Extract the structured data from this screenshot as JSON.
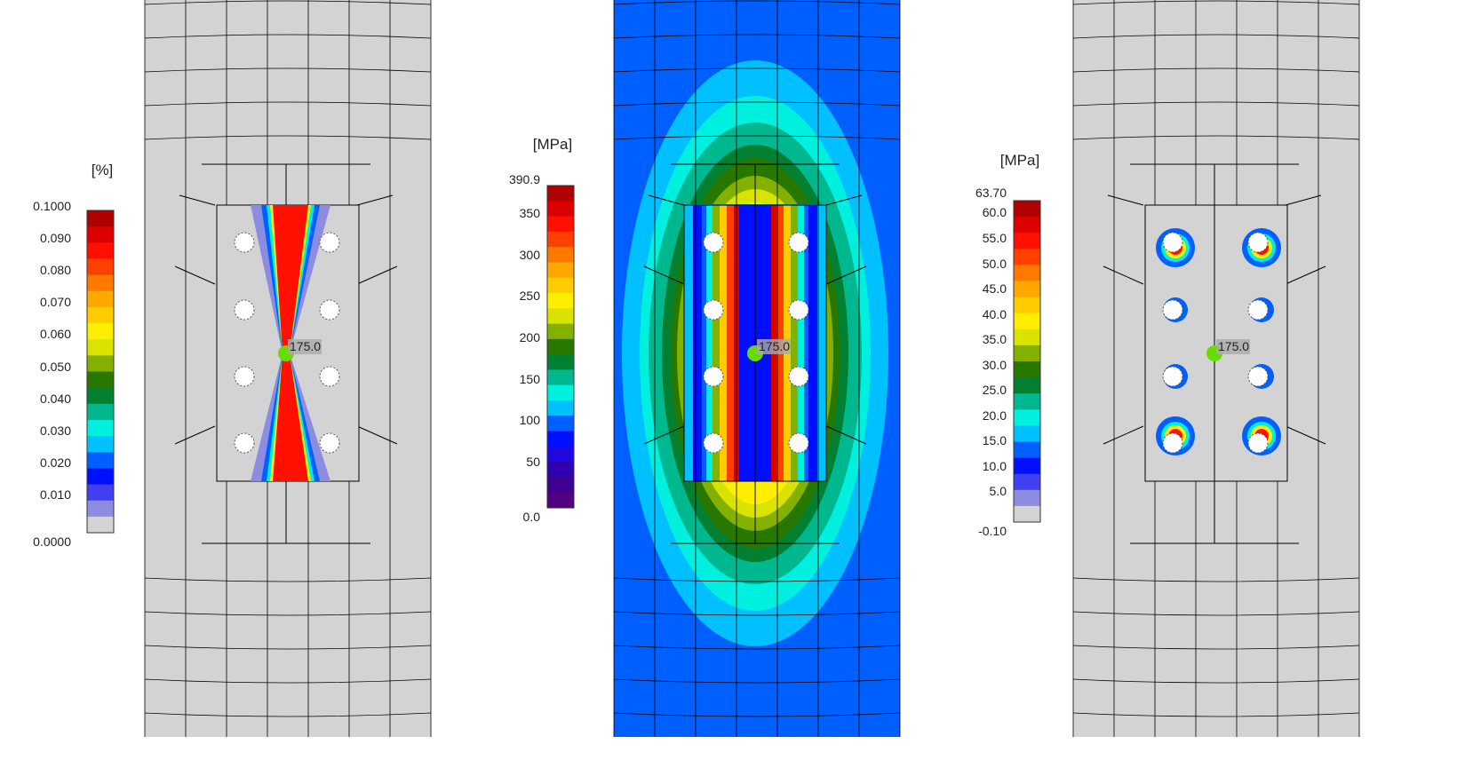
{
  "legends": [
    {
      "name": "strain-legend",
      "unit": "[%]",
      "ticks": [
        "0.1000",
        "0.090",
        "0.080",
        "0.070",
        "0.060",
        "0.050",
        "0.040",
        "0.030",
        "0.020",
        "0.010",
        "0.0000"
      ],
      "colors": [
        "#b00000",
        "#dc0000",
        "#ff1000",
        "#ff4000",
        "#ff7800",
        "#ffa800",
        "#ffcc00",
        "#ffee00",
        "#d8e400",
        "#84b000",
        "#287800",
        "#008030",
        "#00b890",
        "#00f0e0",
        "#00c0ff",
        "#0060ff",
        "#0010ff",
        "#4040f0",
        "#8c8ce0",
        "#d3d3d3"
      ]
    },
    {
      "name": "stress-legend",
      "unit": "[MPa]",
      "ticks": [
        "390.9",
        "350",
        "300",
        "250",
        "200",
        "150",
        "100",
        "50",
        "0.0"
      ],
      "colors": [
        "#b00000",
        "#dc0000",
        "#ff1000",
        "#ff4000",
        "#ff7800",
        "#ffa800",
        "#ffcc00",
        "#ffee00",
        "#d8e400",
        "#84b000",
        "#287800",
        "#008030",
        "#00b890",
        "#00f0e0",
        "#00c0ff",
        "#0060ff",
        "#0010ff",
        "#2008e0",
        "#3000b0",
        "#400090",
        "#500080"
      ]
    },
    {
      "name": "contact-stress-legend",
      "unit": "[MPa]",
      "ticks": [
        "63.70",
        "60.0",
        "55.0",
        "50.0",
        "45.0",
        "40.0",
        "35.0",
        "30.0",
        "25.0",
        "20.0",
        "15.0",
        "10.0",
        "5.0",
        "-0.10"
      ],
      "colors": [
        "#b00000",
        "#dc0000",
        "#ff1000",
        "#ff4000",
        "#ff7800",
        "#ffa800",
        "#ffcc00",
        "#ffee00",
        "#d8e400",
        "#84b000",
        "#287800",
        "#008030",
        "#00b890",
        "#00f0e0",
        "#00c0ff",
        "#0060ff",
        "#0010ff",
        "#4040f0",
        "#8c8ce0",
        "#d3d3d3"
      ]
    }
  ],
  "marker_label": "175.0",
  "colors": {
    "mesh_background": "#d3d3d3",
    "mesh_line": "#000000",
    "marker": "#66dd00"
  }
}
